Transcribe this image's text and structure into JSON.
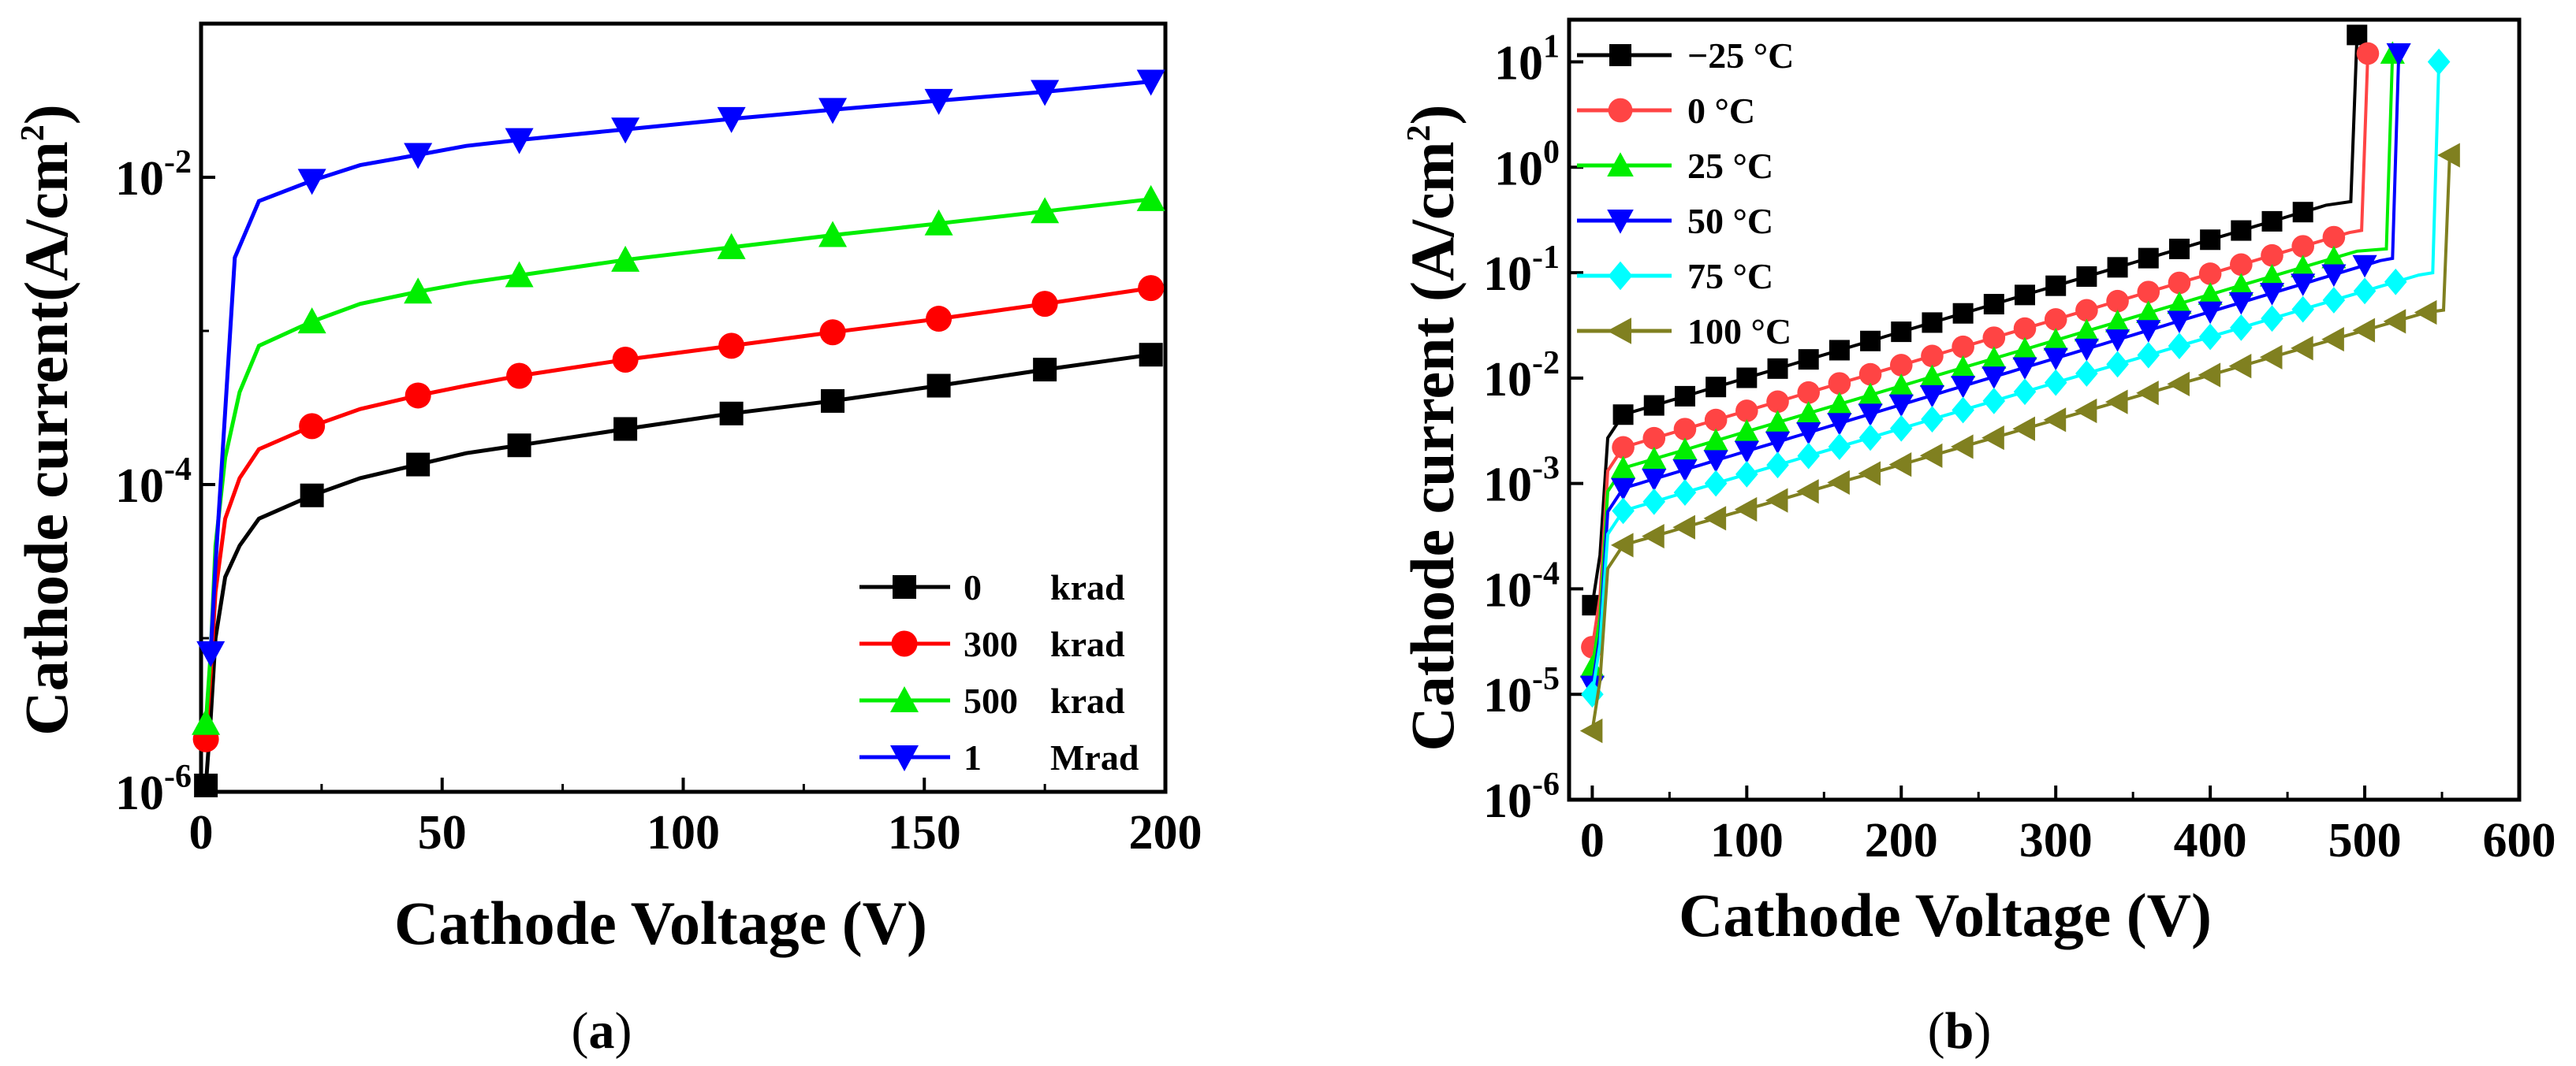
{
  "chart_data": [
    {
      "type": "line",
      "panel_label": "a",
      "xlabel": "Cathode Voltage (V)",
      "ylabel": "Cathode current(A/cm",
      "ylabel_sup": "2",
      "ylabel_close": ")",
      "yscale": "log",
      "xlim": [
        0,
        200
      ],
      "ylim_exp": [
        -6,
        -1
      ],
      "xticks": [
        "0",
        "50",
        "100",
        "150",
        "200"
      ],
      "yticks": [
        {
          "base": "10",
          "exp": "-6"
        },
        {
          "base": "10",
          "exp": "-4"
        },
        {
          "base": "10",
          "exp": "-2"
        }
      ],
      "legend_position": "bottom-right",
      "series": [
        {
          "name_a": "0",
          "name_b": "krad",
          "marker": "square",
          "color": "#000000",
          "points": [
            [
              1,
              1.1e-06
            ],
            [
              2,
              3e-06
            ],
            [
              3,
              1e-05
            ],
            [
              5,
              2.5e-05
            ],
            [
              8,
              4e-05
            ],
            [
              12,
              6e-05
            ],
            [
              23,
              8.5e-05
            ],
            [
              33,
              0.00011
            ],
            [
              45,
              0.000135
            ],
            [
              55,
              0.00016
            ],
            [
              66,
              0.00018
            ],
            [
              88,
              0.00023
            ],
            [
              110,
              0.00029
            ],
            [
              131,
              0.00035
            ],
            [
              153,
              0.00044
            ],
            [
              175,
              0.00056
            ],
            [
              197,
              0.0007
            ]
          ],
          "marker_x": [
            1,
            23,
            45,
            66,
            88,
            110,
            131,
            153,
            175,
            197
          ]
        },
        {
          "name_a": "300",
          "name_b": "krad",
          "marker": "circle",
          "color": "#ff0000",
          "points": [
            [
              1,
              2.2e-06
            ],
            [
              2,
              6e-06
            ],
            [
              3,
              2e-05
            ],
            [
              5,
              6e-05
            ],
            [
              8,
              0.00011
            ],
            [
              12,
              0.00017
            ],
            [
              23,
              0.00024
            ],
            [
              33,
              0.00031
            ],
            [
              45,
              0.00038
            ],
            [
              55,
              0.00044
            ],
            [
              66,
              0.00051
            ],
            [
              88,
              0.00065
            ],
            [
              110,
              0.0008
            ],
            [
              131,
              0.00098
            ],
            [
              153,
              0.0012
            ],
            [
              175,
              0.0015
            ],
            [
              197,
              0.0019
            ]
          ],
          "marker_x": [
            1,
            23,
            45,
            66,
            88,
            110,
            131,
            153,
            175,
            197
          ]
        },
        {
          "name_a": "500",
          "name_b": "krad",
          "marker": "triangle-up",
          "color": "#00ee00",
          "points": [
            [
              1,
              2.8e-06
            ],
            [
              2,
              8e-06
            ],
            [
              3,
              4e-05
            ],
            [
              5,
              0.00015
            ],
            [
              8,
              0.0004
            ],
            [
              12,
              0.0008
            ],
            [
              23,
              0.00115
            ],
            [
              33,
              0.0015
            ],
            [
              45,
              0.0018
            ],
            [
              55,
              0.00205
            ],
            [
              66,
              0.0023
            ],
            [
              88,
              0.0029
            ],
            [
              110,
              0.0035
            ],
            [
              131,
              0.0042
            ],
            [
              153,
              0.005
            ],
            [
              175,
              0.006
            ],
            [
              197,
              0.0072
            ]
          ],
          "marker_x": [
            1,
            23,
            45,
            66,
            88,
            110,
            131,
            153,
            175,
            197
          ]
        },
        {
          "name_a": "1",
          "name_b": "Mrad",
          "marker": "triangle-down",
          "color": "#0000ff",
          "points": [
            [
              2,
              8e-06
            ],
            [
              3,
              3e-05
            ],
            [
              5,
              0.0003
            ],
            [
              7,
              0.003
            ],
            [
              12,
              0.007
            ],
            [
              23,
              0.0095
            ],
            [
              33,
              0.012
            ],
            [
              45,
              0.014
            ],
            [
              55,
              0.016
            ],
            [
              66,
              0.0175
            ],
            [
              88,
              0.0205
            ],
            [
              110,
              0.024
            ],
            [
              131,
              0.0275
            ],
            [
              153,
              0.0315
            ],
            [
              175,
              0.036
            ],
            [
              197,
              0.042
            ]
          ],
          "marker_x": [
            2,
            23,
            45,
            66,
            88,
            110,
            131,
            153,
            175,
            197
          ]
        }
      ]
    },
    {
      "type": "line",
      "panel_label": "b",
      "xlabel": "Cathode Voltage (V)",
      "ylabel": "Cathode current (A/cm",
      "ylabel_sup": "2",
      "ylabel_close": ")",
      "yscale": "log",
      "xlim": [
        -15,
        600
      ],
      "ylim_exp": [
        -6,
        1.4
      ],
      "xticks": [
        "0",
        "100",
        "200",
        "300",
        "400",
        "500",
        "600"
      ],
      "yticks": [
        {
          "base": "10",
          "exp": "-6"
        },
        {
          "base": "10",
          "exp": "-5"
        },
        {
          "base": "10",
          "exp": "-4"
        },
        {
          "base": "10",
          "exp": "-3"
        },
        {
          "base": "10",
          "exp": "-2"
        },
        {
          "base": "10",
          "exp": "-1"
        },
        {
          "base": "10",
          "exp": "0"
        },
        {
          "base": "10",
          "exp": "1"
        }
      ],
      "legend_position": "top-left",
      "series": [
        {
          "name": "−25 °C",
          "marker": "square",
          "color": "#000000",
          "start": 7e-05,
          "low": 0.0045,
          "high": 0.45,
          "vmax": 478,
          "v_break": 495,
          "top": 18,
          "marker_step": 20
        },
        {
          "name": "0   °C",
          "marker": "circle",
          "color": "#ff4444",
          "start": 2.8e-05,
          "low": 0.0022,
          "high": 0.24,
          "vmax": 490,
          "v_break": 502,
          "top": 12,
          "marker_step": 20
        },
        {
          "name": "25 °C",
          "marker": "triangle-up",
          "color": "#00ee00",
          "start": 1.8e-05,
          "low": 0.0014,
          "high": 0.16,
          "vmax": 495,
          "v_break": 518,
          "top": 12,
          "marker_step": 20
        },
        {
          "name": "50 °C",
          "marker": "triangle-down",
          "color": "#0000ff",
          "start": 1.2e-05,
          "low": 0.0009,
          "high": 0.13,
          "vmax": 510,
          "v_break": 522,
          "top": 12,
          "marker_step": 20
        },
        {
          "name": "75 °C",
          "marker": "diamond",
          "color": "#00ffff",
          "start": 1e-05,
          "low": 0.00055,
          "high": 0.095,
          "vmax": 535,
          "v_break": 548,
          "top": 10,
          "marker_step": 20
        },
        {
          "name": "100 °C",
          "marker": "triangle-left",
          "color": "#808020",
          "start": 4.5e-06,
          "low": 0.00026,
          "high": 0.042,
          "vmax": 540,
          "v_break": 555,
          "top": 1.3,
          "marker_step": 20
        }
      ]
    }
  ],
  "captions": [
    {
      "open": "(",
      "label": "a",
      "close": ")"
    },
    {
      "open": "(",
      "label": "b",
      "close": ")"
    }
  ]
}
